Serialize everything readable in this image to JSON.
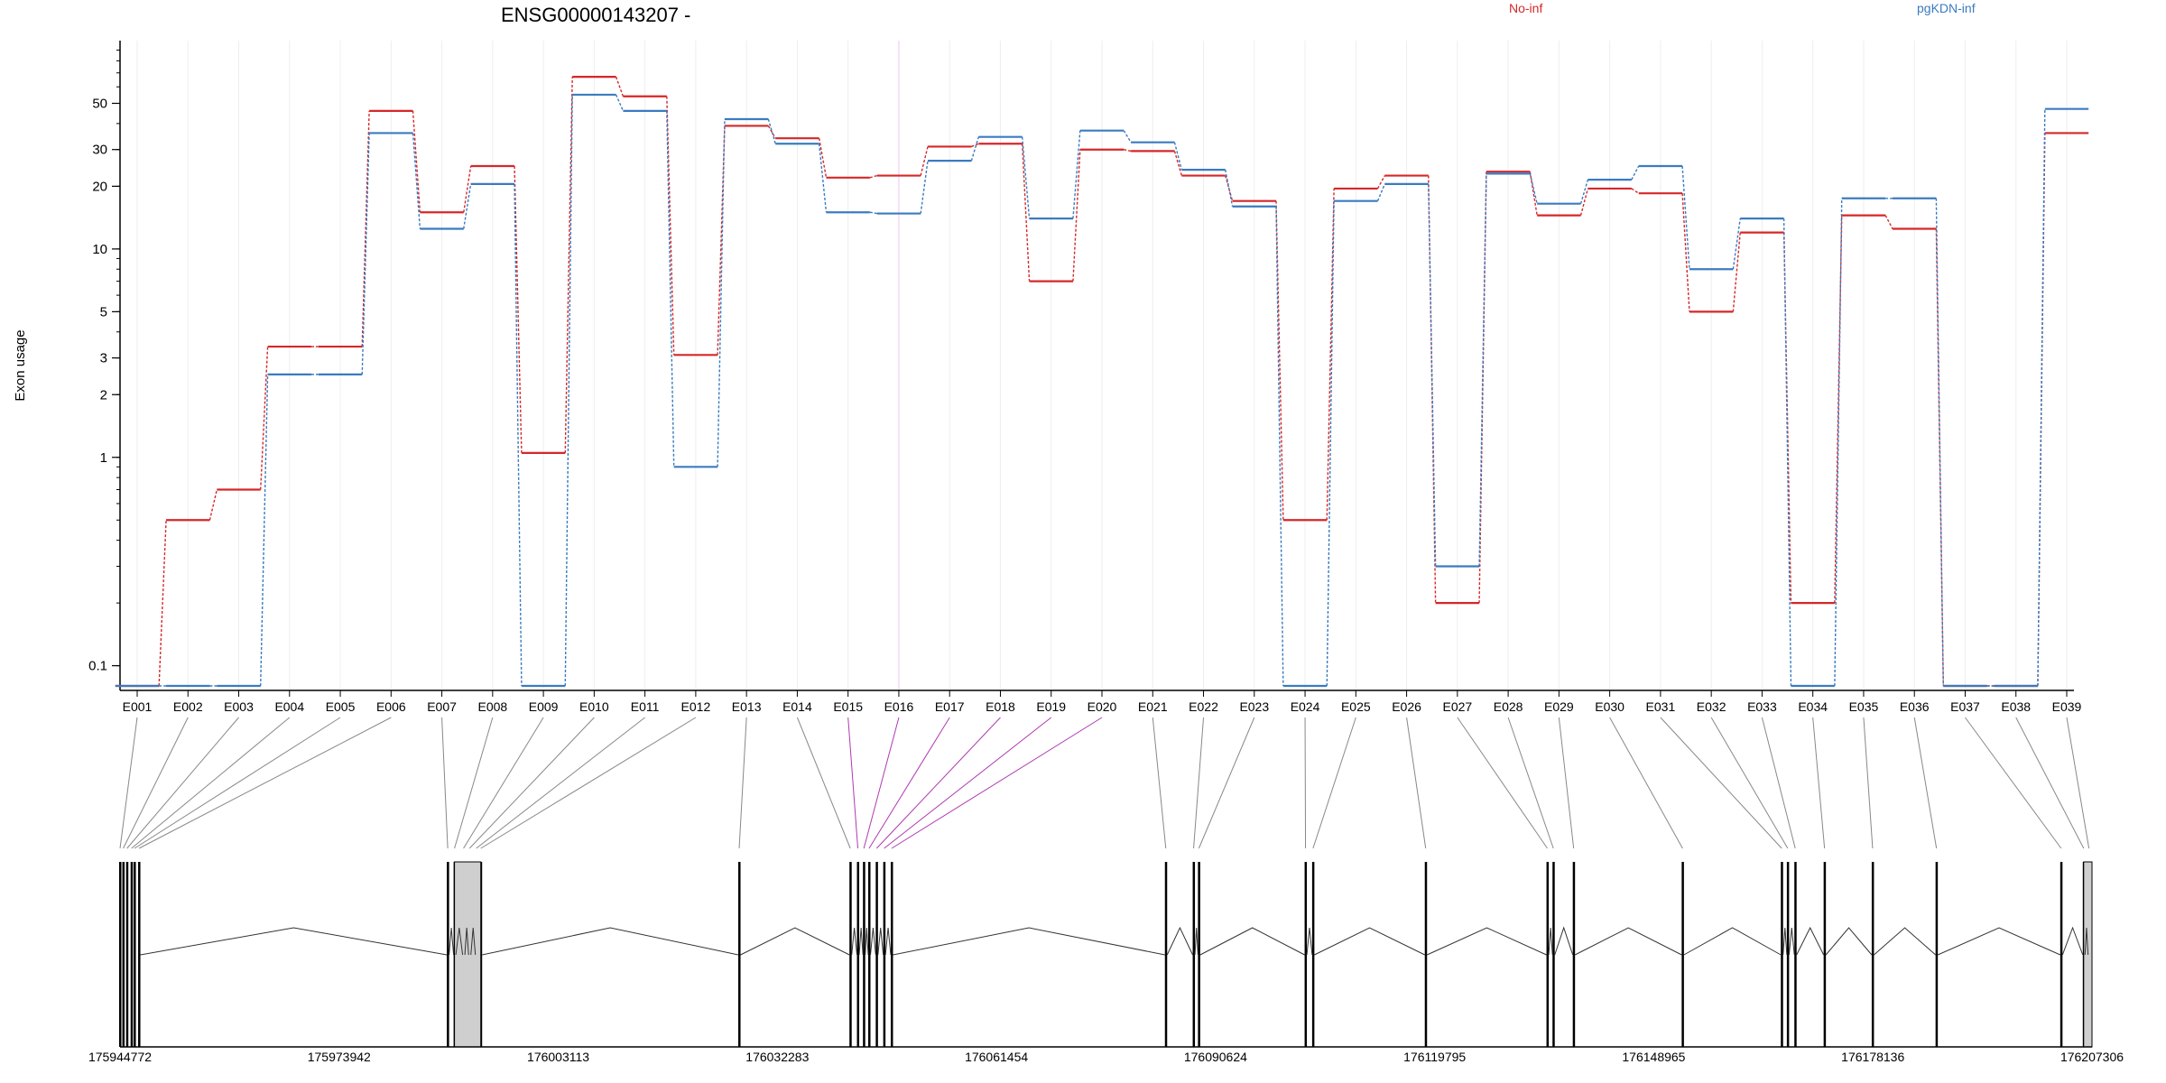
{
  "chart_data": {
    "type": "line",
    "title": "ENSG00000143207 -",
    "ylabel": "Exon usage",
    "yscale": "log",
    "yticks": [
      0.1,
      1,
      2,
      3,
      5,
      10,
      20,
      30,
      50
    ],
    "ytick_labels": [
      "0.1",
      "1",
      "2",
      "3",
      "5",
      "10",
      "20",
      "30",
      "50"
    ],
    "ylim": [
      0.08,
      100
    ],
    "categories": [
      "E001",
      "E002",
      "E003",
      "E004",
      "E005",
      "E006",
      "E007",
      "E008",
      "E009",
      "E010",
      "E011",
      "E012",
      "E013",
      "E014",
      "E015",
      "E016",
      "E017",
      "E018",
      "E019",
      "E020",
      "E021",
      "E022",
      "E023",
      "E024",
      "E025",
      "E026",
      "E027",
      "E028",
      "E029",
      "E030",
      "E031",
      "E032",
      "E033",
      "E034",
      "E035",
      "E036",
      "E037",
      "E038",
      "E039"
    ],
    "series": [
      {
        "name": "No-inf",
        "color": "#d62728",
        "values": [
          0.08,
          0.5,
          0.7,
          3.4,
          3.4,
          46,
          15,
          25,
          1.05,
          67,
          54,
          3.1,
          39,
          34,
          22,
          22.5,
          31,
          32,
          7,
          30,
          29.5,
          22.5,
          17,
          0.5,
          19.5,
          22.5,
          0.2,
          23.5,
          14.5,
          19.5,
          18.5,
          5,
          12,
          0.2,
          14.5,
          12.5,
          0.08,
          0.08,
          36
        ]
      },
      {
        "name": "pgKDN-inf",
        "color": "#3b7bbf",
        "values": [
          0.08,
          0.08,
          0.08,
          2.5,
          2.5,
          36,
          12.5,
          20.5,
          0.08,
          55,
          46,
          0.9,
          42,
          32,
          15,
          14.8,
          26.5,
          34.5,
          14,
          37,
          32.5,
          24,
          16,
          0.08,
          17,
          20.5,
          0.3,
          23,
          16.5,
          21.5,
          25,
          8,
          14,
          0.08,
          17.5,
          17.5,
          0.08,
          0.08,
          47
        ]
      }
    ],
    "highlighted_exons": [
      "E015",
      "E016",
      "E017",
      "E018",
      "E019",
      "E020"
    ],
    "genome_coordinates": [
      "175944772",
      "175973942",
      "176003113",
      "176032283",
      "176061454",
      "176090624",
      "176119795",
      "176148965",
      "176178136",
      "176207306"
    ],
    "gene_start": 175944772,
    "gene_end": 176207306,
    "exon_genomic_starts": [
      175944772,
      175945200,
      175945700,
      175946300,
      175946700,
      175947300,
      175988400,
      175989300,
      175990500,
      175991300,
      175992200,
      175992800,
      176027200,
      176042000,
      176043000,
      176043800,
      176044500,
      176045500,
      176046500,
      176047500,
      176084000,
      176087700,
      176088400,
      176102600,
      176103600,
      176118600,
      176134800,
      176135600,
      176138300,
      176152800,
      176166000,
      176166800,
      176167800,
      176171700,
      176178100,
      176186600,
      176203200,
      176206200,
      176206900
    ],
    "grid": true,
    "legend_position": "top-right"
  }
}
